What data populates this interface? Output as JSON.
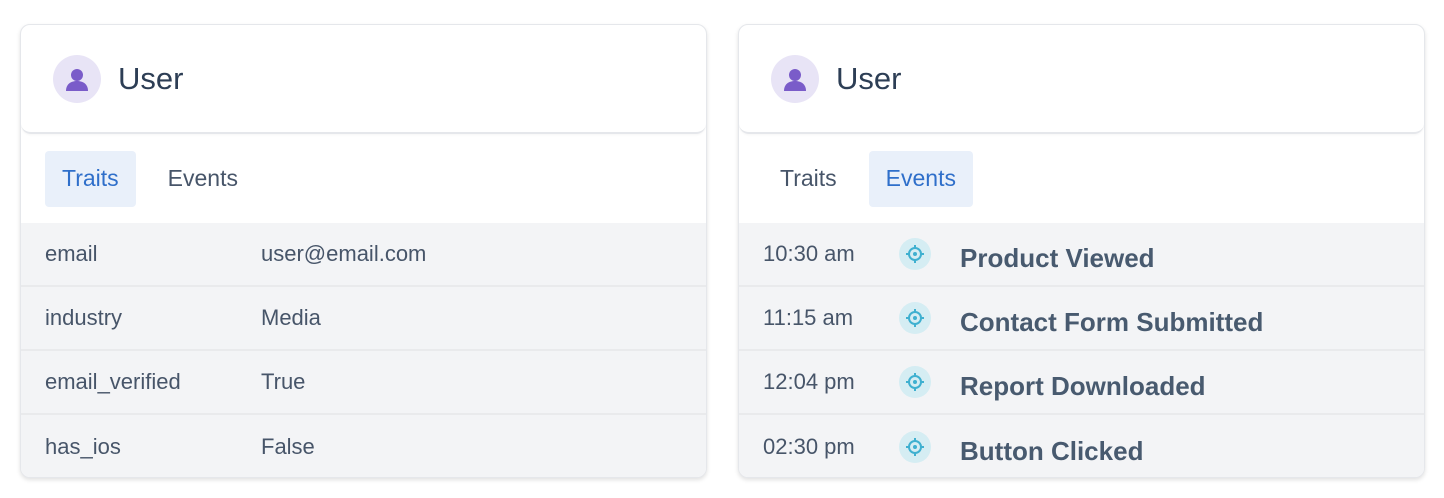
{
  "left_card": {
    "title": "User",
    "tabs": [
      {
        "label": "Traits",
        "active": true
      },
      {
        "label": "Events",
        "active": false
      }
    ],
    "traits": [
      {
        "key": "email",
        "value": "user@email.com"
      },
      {
        "key": "industry",
        "value": "Media"
      },
      {
        "key": "email_verified",
        "value": "True"
      },
      {
        "key": "has_ios",
        "value": "False"
      }
    ]
  },
  "right_card": {
    "title": "User",
    "tabs": [
      {
        "label": "Traits",
        "active": false
      },
      {
        "label": "Events",
        "active": true
      }
    ],
    "events": [
      {
        "time": "10:30 am",
        "name": "Product Viewed",
        "icon": "target-icon"
      },
      {
        "time": "11:15 am",
        "name": "Contact Form Submitted",
        "icon": "target-icon"
      },
      {
        "time": "12:04 pm",
        "name": "Report Downloaded",
        "icon": "target-icon"
      },
      {
        "time": "02:30 pm",
        "name": "Button Clicked",
        "icon": "target-icon"
      }
    ]
  },
  "colors": {
    "accent": "#2f6fca",
    "avatar_icon": "#7a5cc9",
    "event_icon": "#3fb0d0"
  }
}
